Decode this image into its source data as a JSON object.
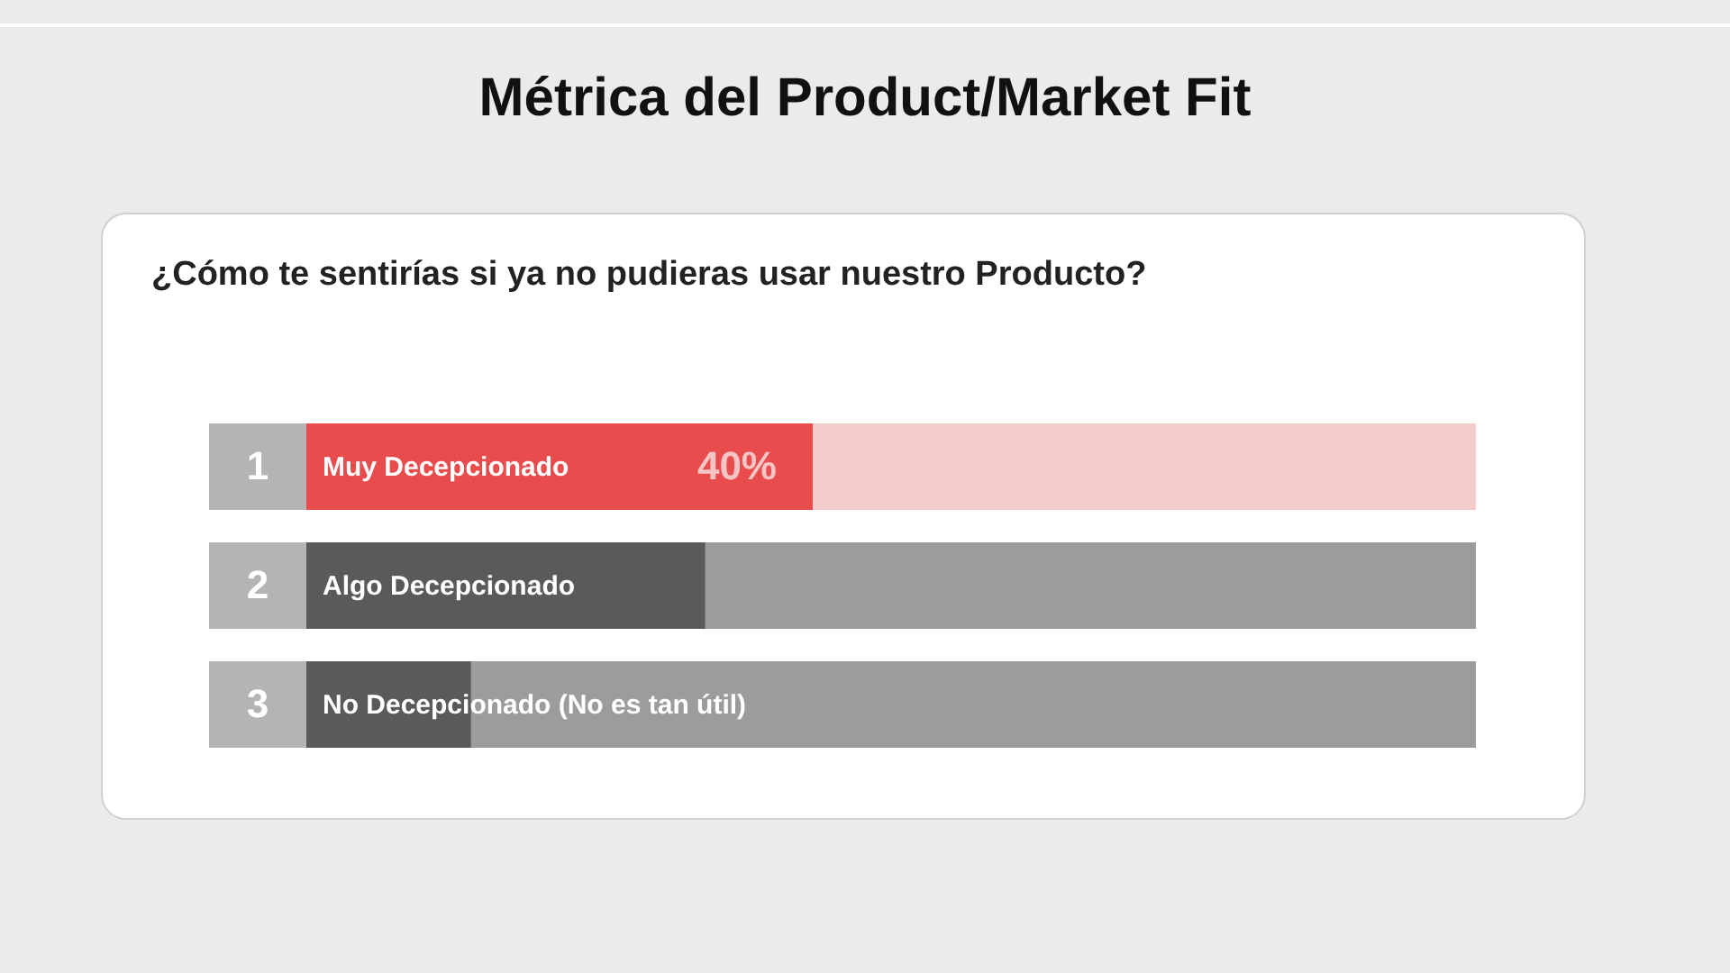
{
  "chart_data": {
    "type": "bar",
    "orientation": "horizontal",
    "title": "Métrica del Product/Market Fit",
    "subtitle": "¿Cómo te sentirías si ya no pudieras usar nuestro Producto?",
    "categories": [
      "Muy Decepcionado",
      "Algo Decepcionado",
      "No Decepcionado (No es tan útil)"
    ],
    "values": [
      40,
      31.5,
      13
    ],
    "colors": [
      "#e84c4c",
      "#5a5a5a",
      "#5a5a5a"
    ],
    "value_labels": [
      "40%",
      null,
      null
    ],
    "annotations": [
      "1",
      "2",
      "3"
    ]
  }
}
